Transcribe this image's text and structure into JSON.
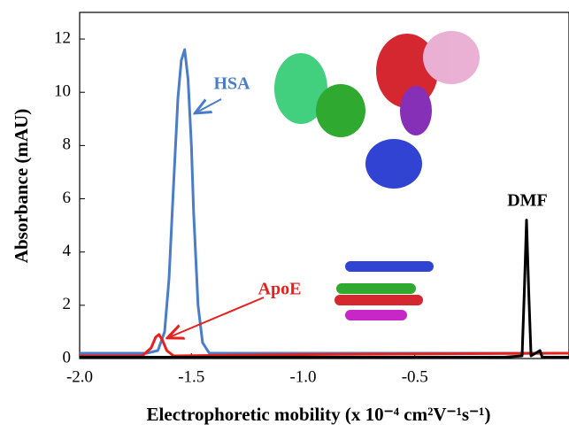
{
  "chart_data": {
    "type": "line",
    "x_label": "Electrophoretic  mobility (x 10⁻⁴ cm²V⁻¹s⁻¹)",
    "y_label": "Absorbance (mAU)",
    "xlim": [
      -2.0,
      0.19
    ],
    "ylim": [
      0,
      13
    ],
    "xticks": [
      {
        "value": -2.0,
        "label": "-2.0"
      },
      {
        "value": -1.5,
        "label": "-1.5"
      },
      {
        "value": -1.0,
        "label": "-1.0"
      },
      {
        "value": -0.5,
        "label": "-0.5"
      }
    ],
    "yticks": [
      0,
      2,
      4,
      6,
      8,
      10,
      12
    ],
    "series": [
      {
        "name": "HSA",
        "color": "#4a7cc7",
        "x": [
          -2.0,
          -1.7,
          -1.65,
          -1.62,
          -1.6,
          -1.58,
          -1.56,
          -1.545,
          -1.53,
          -1.515,
          -1.5,
          -1.49,
          -1.47,
          -1.45,
          -1.42,
          -1.0,
          -0.5,
          0.19
        ],
        "values": [
          0.2,
          0.2,
          0.3,
          1.0,
          3.0,
          6.5,
          9.8,
          11.2,
          11.6,
          10.5,
          8.0,
          5.5,
          2.0,
          0.6,
          0.2,
          0.2,
          0.2,
          0.2
        ]
      },
      {
        "name": "ApoE",
        "color": "#e8201c",
        "x": [
          -2.0,
          -1.72,
          -1.68,
          -1.66,
          -1.645,
          -1.63,
          -1.61,
          -1.58,
          -1.0,
          0.19
        ],
        "values": [
          0.1,
          0.1,
          0.4,
          0.8,
          0.9,
          0.7,
          0.3,
          0.1,
          0.15,
          0.2
        ]
      },
      {
        "name": "DMF",
        "color": "#000000",
        "x": [
          -2.0,
          -0.1,
          -0.02,
          -0.01,
          0.0,
          0.01,
          0.02,
          0.06,
          0.07,
          0.19
        ],
        "values": [
          0.05,
          0.05,
          0.1,
          2.5,
          5.2,
          2.5,
          0.1,
          0.3,
          0.05,
          0.05
        ]
      }
    ]
  }
}
